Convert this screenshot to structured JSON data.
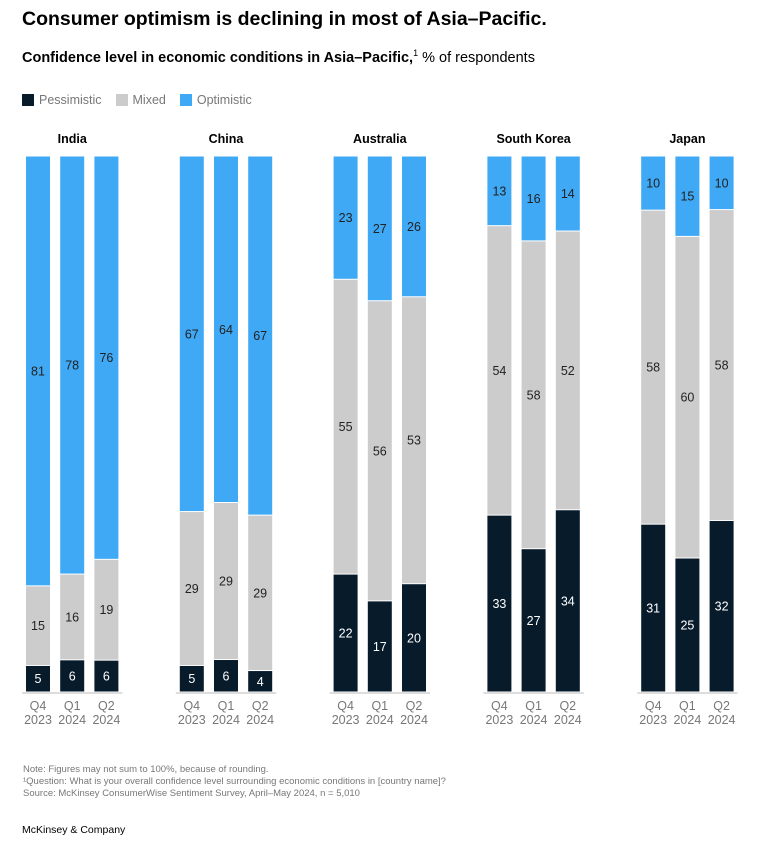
{
  "title": "Consumer optimism is declining in most of Asia–Pacific.",
  "subtitle": {
    "bold": "Confidence level in economic conditions in Asia–Pacific,",
    "footnote_mark": "1",
    "rest": " % of respondents"
  },
  "legend": [
    {
      "label": "Pessimistic",
      "color": "#071b2b"
    },
    {
      "label": "Mixed",
      "color": "#cccccc"
    },
    {
      "label": "Optimistic",
      "color": "#3fa9f5"
    }
  ],
  "chart_data": {
    "type": "bar",
    "stacked": true,
    "categories": [
      [
        "Q4",
        "2023"
      ],
      [
        "Q1",
        "2024"
      ],
      [
        "Q2",
        "2024"
      ]
    ],
    "groups": [
      {
        "name": "India",
        "series": {
          "Pessimistic": [
            5,
            6,
            6
          ],
          "Mixed": [
            15,
            16,
            19
          ],
          "Optimistic": [
            81,
            78,
            76
          ]
        }
      },
      {
        "name": "China",
        "series": {
          "Pessimistic": [
            5,
            6,
            4
          ],
          "Mixed": [
            29,
            29,
            29
          ],
          "Optimistic": [
            67,
            64,
            67
          ]
        }
      },
      {
        "name": "Australia",
        "series": {
          "Pessimistic": [
            22,
            17,
            20
          ],
          "Mixed": [
            55,
            56,
            53
          ],
          "Optimistic": [
            23,
            27,
            26
          ]
        }
      },
      {
        "name": "South Korea",
        "series": {
          "Pessimistic": [
            33,
            27,
            34
          ],
          "Mixed": [
            54,
            58,
            52
          ],
          "Optimistic": [
            13,
            16,
            14
          ]
        }
      },
      {
        "name": "Japan",
        "series": {
          "Pessimistic": [
            31,
            25,
            32
          ],
          "Mixed": [
            58,
            60,
            58
          ],
          "Optimistic": [
            10,
            15,
            10
          ]
        }
      }
    ],
    "series_order": [
      "Pessimistic",
      "Mixed",
      "Optimistic"
    ],
    "label_colors": {
      "Pessimistic": "#ffffff",
      "Mixed": "#222222",
      "Optimistic": "#222222"
    },
    "grid": false,
    "legend_placement": "top-left"
  },
  "notes": [
    "Note: Figures may not sum to 100%, because of rounding.",
    "¹Question: What is your overall confidence level surrounding economic conditions in [country name]?",
    "Source: McKinsey ConsumerWise Sentiment Survey, April–May 2024, n = 5,010"
  ],
  "brand": "McKinsey & Company"
}
